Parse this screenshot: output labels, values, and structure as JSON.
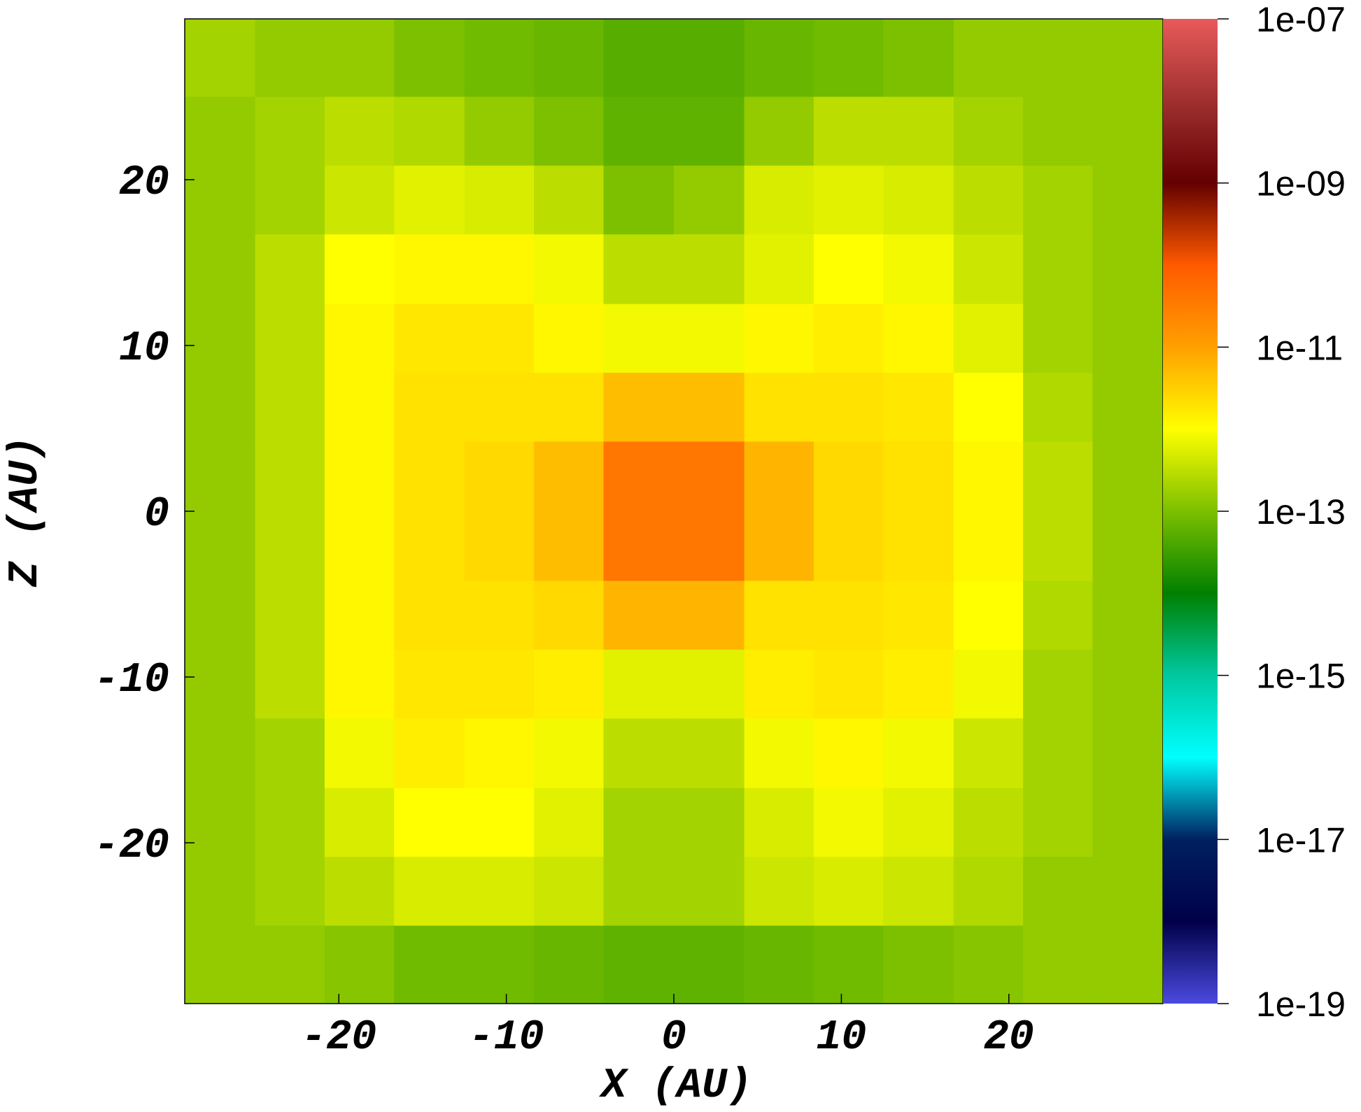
{
  "chart_data": {
    "type": "heatmap",
    "xlabel": "X (AU)",
    "ylabel": "Z (AU)",
    "xlim": [
      -29.2,
      29.2
    ],
    "ylim": [
      -29.7,
      29.7
    ],
    "xticks": [
      -20,
      -10,
      0,
      10,
      20
    ],
    "yticks": [
      -20,
      -10,
      0,
      10,
      20
    ],
    "x": [
      -27.1,
      -22.9,
      -18.8,
      -14.6,
      -10.4,
      -6.3,
      -2.1,
      2.1,
      6.3,
      10.4,
      14.6,
      18.8,
      22.9,
      27.1
    ],
    "y": [
      27.1,
      22.9,
      18.8,
      14.6,
      10.4,
      6.3,
      2.1,
      -2.1,
      -6.3,
      -10.4,
      -14.6,
      -18.8,
      -22.9,
      -27.1
    ],
    "z": [
      [
        2e-13,
        1.5e-13,
        1.5e-13,
        1e-13,
        8e-14,
        7e-14,
        5e-14,
        5e-14,
        7e-14,
        8e-14,
        1e-13,
        1.5e-13,
        1.5e-13,
        1.5e-13
      ],
      [
        1.5e-13,
        2e-13,
        3e-13,
        2.5e-13,
        1.5e-13,
        1e-13,
        6e-14,
        6e-14,
        1.5e-13,
        3e-13,
        3e-13,
        2e-13,
        1.5e-13,
        1.5e-13
      ],
      [
        1.5e-13,
        2e-13,
        4e-13,
        6e-13,
        5e-13,
        3e-13,
        1e-13,
        1.5e-13,
        5e-13,
        6e-13,
        5e-13,
        3e-13,
        2e-13,
        1.5e-13
      ],
      [
        1.5e-13,
        3e-13,
        1e-12,
        1.2e-12,
        1.2e-12,
        8e-13,
        3e-13,
        3e-13,
        6e-13,
        1e-12,
        8e-13,
        4e-13,
        2e-13,
        1.5e-13
      ],
      [
        1.5e-13,
        3e-13,
        1.2e-12,
        1.8e-12,
        1.8e-12,
        1.2e-12,
        8e-13,
        8e-13,
        1.2e-12,
        1.5e-12,
        1.2e-12,
        6e-13,
        2e-13,
        1.5e-13
      ],
      [
        1.5e-13,
        3e-13,
        1.2e-12,
        2e-12,
        2e-12,
        2e-12,
        5e-12,
        5e-12,
        2e-12,
        2e-12,
        1.8e-12,
        1e-12,
        2.5e-13,
        1.5e-13
      ],
      [
        1.5e-13,
        3e-13,
        1.2e-12,
        2e-12,
        2.5e-12,
        5e-12,
        4e-11,
        4e-11,
        6e-12,
        2.5e-12,
        2e-12,
        1.2e-12,
        3e-13,
        1.5e-13
      ],
      [
        1.5e-13,
        3e-13,
        1.2e-12,
        2e-12,
        2.5e-12,
        5e-12,
        4e-11,
        4e-11,
        6e-12,
        2.5e-12,
        2e-12,
        1.2e-12,
        3e-13,
        1.5e-13
      ],
      [
        1.5e-13,
        3e-13,
        1.2e-12,
        2e-12,
        2e-12,
        2.5e-12,
        6e-12,
        6e-12,
        2e-12,
        2e-12,
        1.8e-12,
        1e-12,
        2.5e-13,
        1.5e-13
      ],
      [
        1.5e-13,
        3e-13,
        1.2e-12,
        1.8e-12,
        1.8e-12,
        1.5e-12,
        6e-13,
        6e-13,
        1.5e-12,
        1.8e-12,
        1.5e-12,
        8e-13,
        2e-13,
        1.5e-13
      ],
      [
        1.5e-13,
        2e-13,
        8e-13,
        1.5e-12,
        1.2e-12,
        8e-13,
        3e-13,
        3e-13,
        8e-13,
        1.2e-12,
        8e-13,
        4e-13,
        2e-13,
        1.5e-13
      ],
      [
        1.5e-13,
        2e-13,
        5e-13,
        1e-12,
        1e-12,
        6e-13,
        2e-13,
        2e-13,
        5e-13,
        8e-13,
        6e-13,
        3e-13,
        2e-13,
        1.5e-13
      ],
      [
        1.5e-13,
        2e-13,
        3e-13,
        5e-13,
        5e-13,
        4e-13,
        2e-13,
        2e-13,
        4e-13,
        5e-13,
        4e-13,
        2.5e-13,
        1.5e-13,
        1.5e-13
      ],
      [
        1.5e-13,
        1.5e-13,
        1.2e-13,
        8e-14,
        8e-14,
        7e-14,
        6e-14,
        6e-14,
        7e-14,
        8e-14,
        1e-13,
        1.2e-13,
        1.5e-13,
        1.5e-13
      ]
    ],
    "zlim": [
      1e-19,
      1e-07
    ],
    "zscale": "log",
    "zticks": [
      {
        "value": 1e-19,
        "label": "1e-19"
      },
      {
        "value": 1e-17,
        "label": "1e-17"
      },
      {
        "value": 1e-15,
        "label": "1e-15"
      },
      {
        "value": 1e-13,
        "label": "1e-13"
      },
      {
        "value": 1e-11,
        "label": "1e-11"
      },
      {
        "value": 1e-09,
        "label": "1e-09"
      },
      {
        "value": 1e-07,
        "label": "1e-07"
      }
    ],
    "colormap": [
      "#4a4ae0",
      "#000048",
      "#002060",
      "#00ffff",
      "#00c8a0",
      "#008000",
      "#7cc000",
      "#ffff00",
      "#ffa000",
      "#ff5a00",
      "#640000",
      "#a03030",
      "#e85a5a"
    ]
  }
}
